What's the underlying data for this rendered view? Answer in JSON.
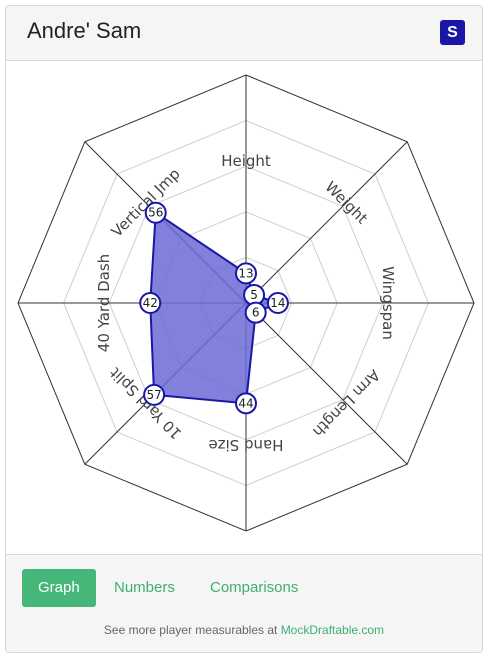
{
  "header": {
    "player_name": "Andre' Sam",
    "logo_letter": "S"
  },
  "tabs": [
    {
      "label": "Graph",
      "active": true
    },
    {
      "label": "Numbers",
      "active": false
    },
    {
      "label": "Comparisons",
      "active": false
    }
  ],
  "footer": {
    "note_prefix": "See more player measurables at ",
    "link_text": "MockDraftable.com"
  },
  "colors": {
    "accent": "#47b779",
    "fill": "#6b6bd6",
    "stroke": "#1a16a6"
  },
  "chart_data": {
    "type": "radar",
    "axes": [
      "Height",
      "Weight",
      "Wingspan",
      "Arm Length",
      "Hand Size",
      "10 Yard Split",
      "40 Yard Dash",
      "Vertical Jump"
    ],
    "axis_label_display": [
      "Height",
      "Weight",
      "Wingspan",
      "Arm Length",
      "Hand Size",
      "10 Yard Split",
      "40 Yard Dash",
      "Vertical Jmp"
    ],
    "values": [
      13,
      5,
      14,
      6,
      44,
      57,
      42,
      56
    ],
    "range": [
      0,
      100
    ],
    "grid_rings": 5
  }
}
